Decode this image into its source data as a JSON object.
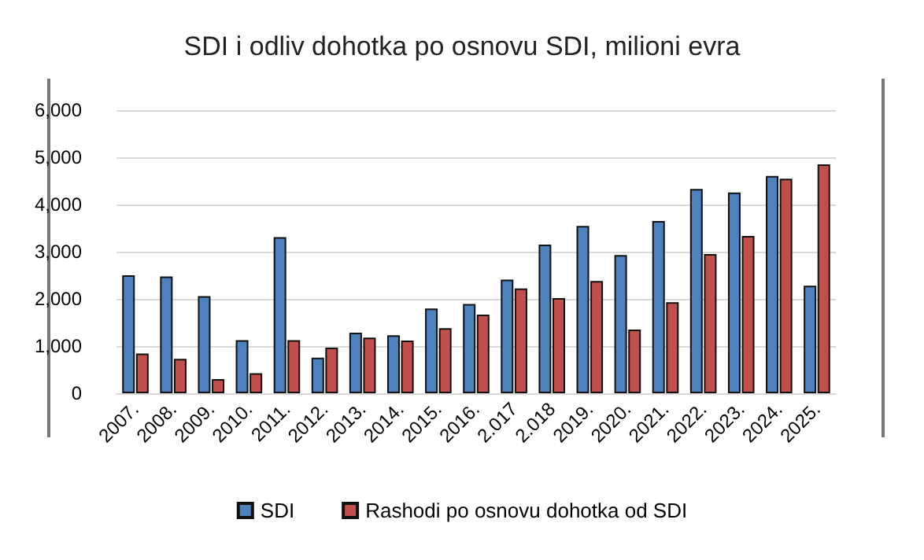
{
  "chart_data": {
    "type": "bar",
    "title": "SDI i odliv dohotka po osnovu SDI, milioni evra",
    "categories": [
      "2007.",
      "2008.",
      "2009.",
      "2010.",
      "2011.",
      "2012.",
      "2013.",
      "2014.",
      "2015.",
      "2016.",
      "2.017",
      "2.018",
      "2019.",
      "2020.",
      "2021.",
      "2022.",
      "2023.",
      "2024.",
      "2025."
    ],
    "series": [
      {
        "name": "SDI",
        "color": "#4f81bd",
        "values": [
          2500,
          2475,
          2060,
          1125,
          3310,
          755,
          1285,
          1230,
          1795,
          1890,
          2410,
          3150,
          3545,
          2930,
          3650,
          4330,
          4255,
          4605,
          2280
        ]
      },
      {
        "name": "Rashodi po osnovu dohotka od SDI",
        "color": "#c0504d",
        "values": [
          840,
          730,
          300,
          425,
          1125,
          965,
          1180,
          1115,
          1380,
          1665,
          2220,
          2015,
          2380,
          1350,
          1930,
          2950,
          3335,
          4545,
          4850
        ]
      }
    ],
    "ylim": [
      0,
      6000
    ],
    "yticks": [
      {
        "value": 0,
        "label": "0"
      },
      {
        "value": 1000,
        "label": "1,000"
      },
      {
        "value": 2000,
        "label": "2,000"
      },
      {
        "value": 3000,
        "label": "3,000"
      },
      {
        "value": 4000,
        "label": "4,000"
      },
      {
        "value": 5000,
        "label": "5,000"
      },
      {
        "value": 6000,
        "label": "6,000"
      }
    ],
    "grid": "y",
    "legend": "bottom"
  }
}
